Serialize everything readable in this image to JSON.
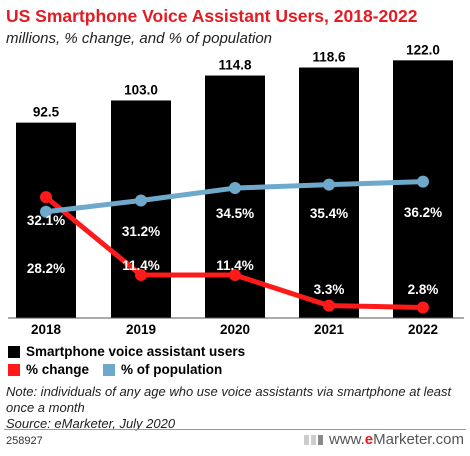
{
  "title": "US Smartphone Voice Assistant Users, 2018-2022",
  "subtitle": "millions, % change, and % of population",
  "chart_data": {
    "type": "bar",
    "categories": [
      "2018",
      "2019",
      "2020",
      "2021",
      "2022"
    ],
    "bar_series": {
      "name": "Smartphone voice assistant users",
      "values": [
        92.5,
        103.0,
        114.8,
        118.6,
        122.0
      ],
      "labels": [
        "92.5",
        "103.0",
        "114.8",
        "118.6",
        "122.0"
      ],
      "color": "#000000",
      "ylim": [
        0,
        125
      ]
    },
    "line_series": [
      {
        "name": "% change",
        "values": [
          32.1,
          11.4,
          11.4,
          3.3,
          2.8
        ],
        "labels": [
          "32.1%",
          "11.4%",
          "11.4%",
          "3.3%",
          "2.8%"
        ],
        "color": "#ff1a1a"
      },
      {
        "name": "% of population",
        "values": [
          28.2,
          31.2,
          34.5,
          35.4,
          36.2
        ],
        "labels": [
          "28.2%",
          "31.2%",
          "34.5%",
          "35.4%",
          "36.2%"
        ],
        "color": "#6ea9cc"
      }
    ],
    "line_ylim": [
      0,
      60
    ],
    "grid": false,
    "legend_position": "bottom-left"
  },
  "note": "Note: individuals of any age who use voice assistants via smartphone at least once a month",
  "source": "Source: eMarketer, July 2020",
  "chart_id": "258927",
  "brand": {
    "prefix": "www.",
    "e": "e",
    "rest": "Marketer",
    "suffix": ".com"
  }
}
